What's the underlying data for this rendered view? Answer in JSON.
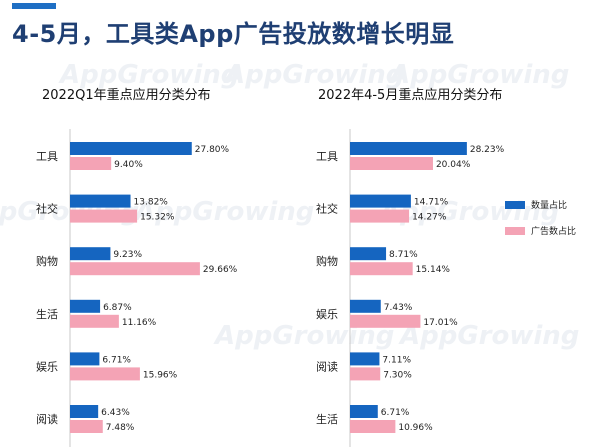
{
  "header": {
    "title": "4-5月，工具类App广告投放数增长明显",
    "watermark": "AppGrowing"
  },
  "colors": {
    "accent": "#1f6fc4",
    "title": "#1f3f73",
    "series_count": "#1565c0",
    "series_ad": "#f4a3b5"
  },
  "legend": {
    "count_label": "数量占比",
    "ad_label": "广告数占比"
  },
  "chart_data": [
    {
      "type": "bar",
      "orientation": "horizontal",
      "title": "2022Q1年重点应用分类分布",
      "categories": [
        "工具",
        "社交",
        "购物",
        "生活",
        "娱乐",
        "阅读"
      ],
      "series": [
        {
          "name": "数量占比",
          "values": [
            27.8,
            13.82,
            9.23,
            6.87,
            6.71,
            6.43
          ],
          "labels": [
            "27.80%",
            "13.82%",
            "9.23%",
            "6.87%",
            "6.71%",
            "6.43%"
          ]
        },
        {
          "name": "广告数占比",
          "values": [
            9.4,
            15.32,
            29.66,
            11.16,
            15.96,
            7.48
          ],
          "labels": [
            "9.40%",
            "15.32%",
            "29.66%",
            "11.16%",
            "15.96%",
            "7.48%"
          ]
        }
      ],
      "xlim": [
        0,
        30
      ]
    },
    {
      "type": "bar",
      "orientation": "horizontal",
      "title": "2022年4-5月重点应用分类分布",
      "categories": [
        "工具",
        "社交",
        "购物",
        "娱乐",
        "阅读",
        "生活"
      ],
      "series": [
        {
          "name": "数量占比",
          "values": [
            28.23,
            14.71,
            8.71,
            7.43,
            7.11,
            6.71
          ],
          "labels": [
            "28.23%",
            "14.71%",
            "8.71%",
            "7.43%",
            "7.11%",
            "6.71%"
          ]
        },
        {
          "name": "广告数占比",
          "values": [
            20.04,
            14.27,
            15.14,
            17.01,
            7.3,
            10.96
          ],
          "labels": [
            "20.04%",
            "14.27%",
            "15.14%",
            "17.01%",
            "7.30%",
            "10.96%"
          ]
        }
      ],
      "xlim": [
        0,
        30
      ]
    }
  ]
}
